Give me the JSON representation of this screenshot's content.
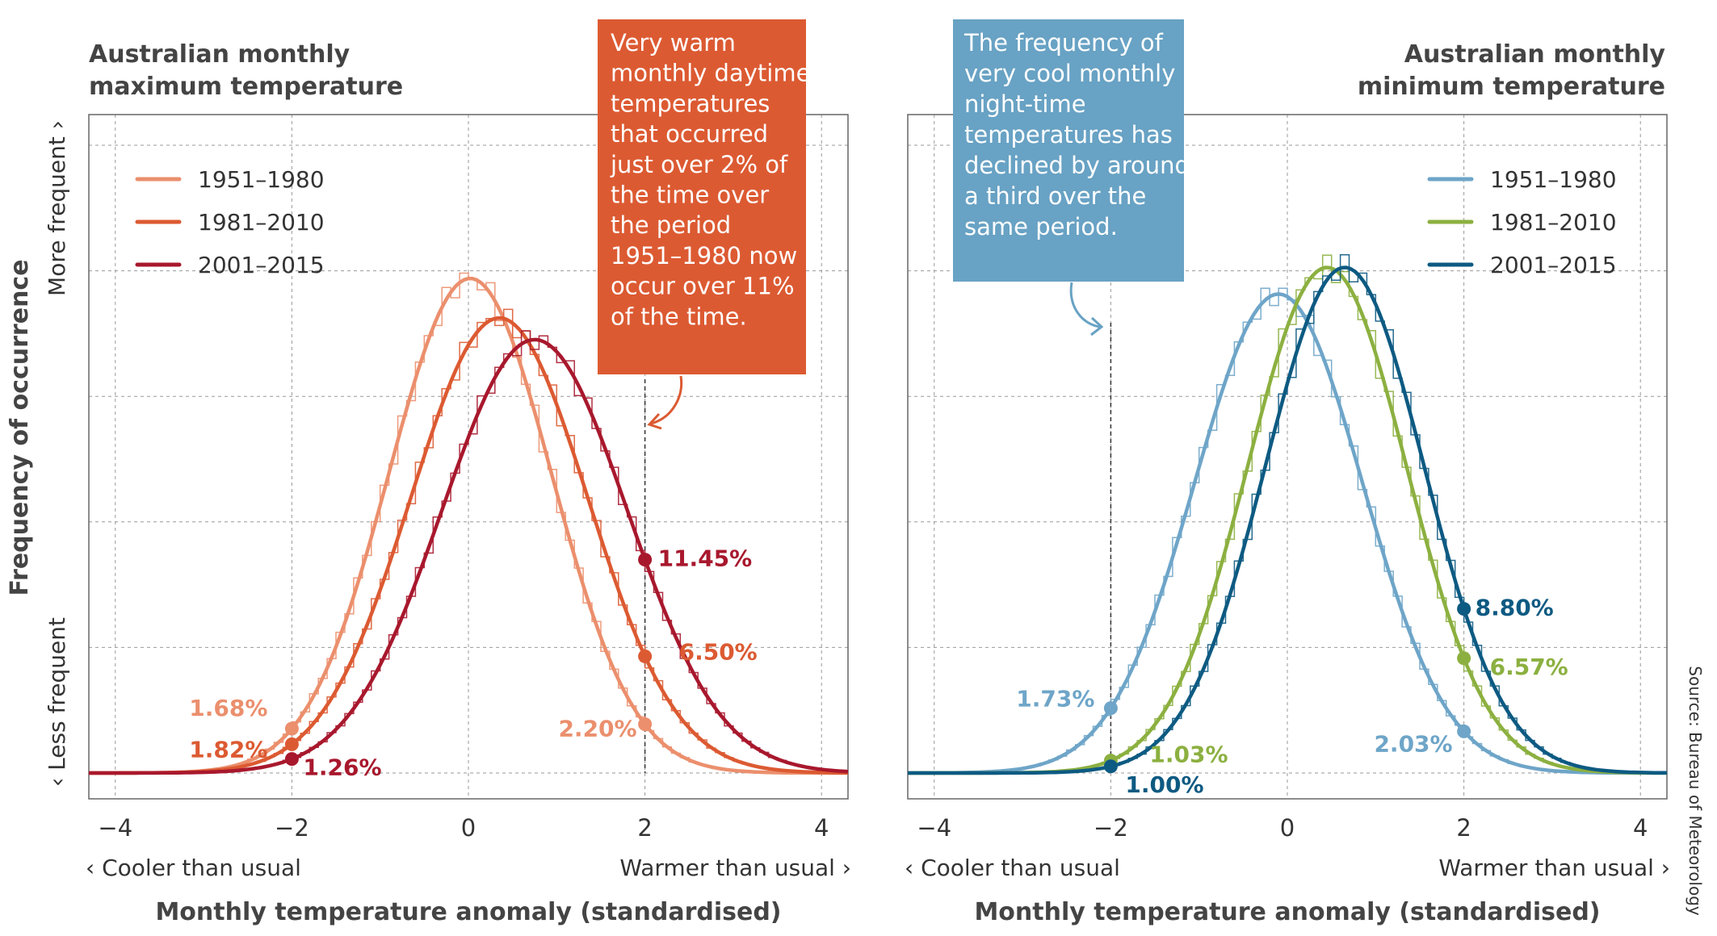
{
  "source": "Source: Bureau of Meteorology",
  "y_axis_title": "Frequency of occurrence",
  "y_more": "More frequent ›",
  "y_less": "‹ Less frequent",
  "colors": {
    "max_1951": "#eb8f6d",
    "max_1981": "#dc5a32",
    "max_2001": "#a8182d",
    "min_1951": "#6ea5c8",
    "min_1981": "#8cb040",
    "min_2001": "#0d5a82",
    "callout_warm": "#dc5a32",
    "callout_cool": "#68a2c4"
  },
  "chart_data": [
    {
      "type": "line",
      "title": "Australian monthly maximum temperature",
      "xlabel": "Monthly temperature anomaly (standardised)",
      "x_left_label": "‹ Cooler than usual",
      "x_right_label": "Warmer than usual ›",
      "xlim": [
        -4.3,
        4.3
      ],
      "xticks": [
        -4,
        -2,
        0,
        2,
        4
      ],
      "xtick_labels": [
        "−4",
        "−2",
        "0",
        "2",
        "4"
      ],
      "grid": true,
      "legend_position": "top-left",
      "threshold_x": 2,
      "series": [
        {
          "name": "1951–1980",
          "color_key": "max_1951",
          "mean": 0.02,
          "sd": 0.92,
          "labels": [
            {
              "x": -2,
              "text": "1.68%"
            },
            {
              "x": 2,
              "text": "2.20%"
            }
          ]
        },
        {
          "name": "1981–2010",
          "color_key": "max_1981",
          "mean": 0.35,
          "sd": 1.0,
          "labels": [
            {
              "x": -2,
              "text": "1.82%"
            },
            {
              "x": 2,
              "text": "6.50%"
            }
          ]
        },
        {
          "name": "2001–2015",
          "color_key": "max_2001",
          "mean": 0.75,
          "sd": 1.05,
          "labels": [
            {
              "x": -2,
              "text": "1.26%"
            },
            {
              "x": 2,
              "text": "11.45%"
            }
          ]
        }
      ],
      "callout": "Very warm monthly daytime temperatures that occurred just over 2% of the time over the period 1951–1980 now occur over 11% of the time."
    },
    {
      "type": "line",
      "title": "Australian monthly minimum temperature",
      "xlabel": "Monthly temperature anomaly (standardised)",
      "x_left_label": "‹ Cooler than usual",
      "x_right_label": "Warmer than usual ›",
      "xlim": [
        -4.3,
        4.3
      ],
      "xticks": [
        -4,
        -2,
        0,
        2,
        4
      ],
      "xtick_labels": [
        "−4",
        "−2",
        "0",
        "2",
        "4"
      ],
      "grid": true,
      "legend_position": "top-right",
      "threshold_x": -2,
      "series": [
        {
          "name": "1951–1980",
          "color_key": "min_1951",
          "mean": -0.1,
          "sd": 0.95,
          "labels": [
            {
              "x": -2,
              "text": "1.73%"
            },
            {
              "x": 2,
              "text": "2.03%"
            }
          ]
        },
        {
          "name": "1981–2010",
          "color_key": "min_1981",
          "mean": 0.45,
          "sd": 0.9,
          "labels": [
            {
              "x": -2,
              "text": "1.03%"
            },
            {
              "x": 2,
              "text": "6.57%"
            }
          ]
        },
        {
          "name": "2001–2015",
          "color_key": "min_2001",
          "mean": 0.65,
          "sd": 0.9,
          "labels": [
            {
              "x": -2,
              "text": "1.00%"
            },
            {
              "x": 2,
              "text": "8.80%"
            }
          ]
        }
      ],
      "callout": "The frequency of very cool monthly night-time temperatures has declined by around a third over the same period."
    }
  ]
}
